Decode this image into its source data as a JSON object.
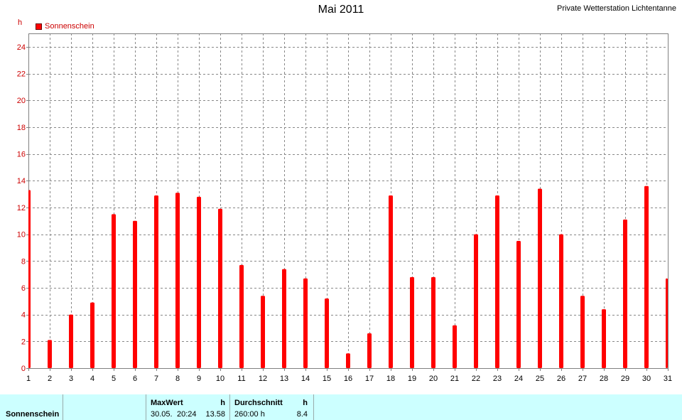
{
  "header": {
    "title": "Mai 2011",
    "station": "Private Wetterstation Lichtentanne",
    "unit_label": "h"
  },
  "legend": {
    "label": "Sonnenschein",
    "color": "#ff0000"
  },
  "chart_data": {
    "type": "bar",
    "title": "Mai 2011",
    "ylabel": "h",
    "xlabel": "",
    "ylim": [
      0,
      25
    ],
    "y_ticks": [
      0,
      2,
      4,
      6,
      8,
      10,
      12,
      14,
      16,
      18,
      20,
      22,
      24
    ],
    "grid": true,
    "legend_position": "top-left",
    "categories": [
      "1",
      "2",
      "3",
      "4",
      "5",
      "6",
      "7",
      "8",
      "9",
      "10",
      "11",
      "12",
      "13",
      "14",
      "15",
      "16",
      "17",
      "18",
      "19",
      "20",
      "21",
      "22",
      "23",
      "24",
      "25",
      "26",
      "27",
      "28",
      "29",
      "30",
      "31"
    ],
    "series": [
      {
        "name": "Sonnenschein",
        "color": "#ff0000",
        "values": [
          13.3,
          2.1,
          4.0,
          4.9,
          11.5,
          11.0,
          12.9,
          13.1,
          12.8,
          11.9,
          7.7,
          5.4,
          7.4,
          6.7,
          5.2,
          1.1,
          2.6,
          12.9,
          6.8,
          6.8,
          3.2,
          10.0,
          12.9,
          9.5,
          13.4,
          10.0,
          5.4,
          4.4,
          11.1,
          13.6,
          6.7
        ]
      }
    ]
  },
  "footer": {
    "row_label": "Sonnenschein",
    "max_header": "MaxWert",
    "max_unit": "h",
    "max_date": "30.05.",
    "max_time": "20:24",
    "max_value": "13.58",
    "avg_header": "Durchschnitt",
    "avg_unit": "h",
    "avg_total": "260:00 h",
    "avg_value": "8.4"
  }
}
